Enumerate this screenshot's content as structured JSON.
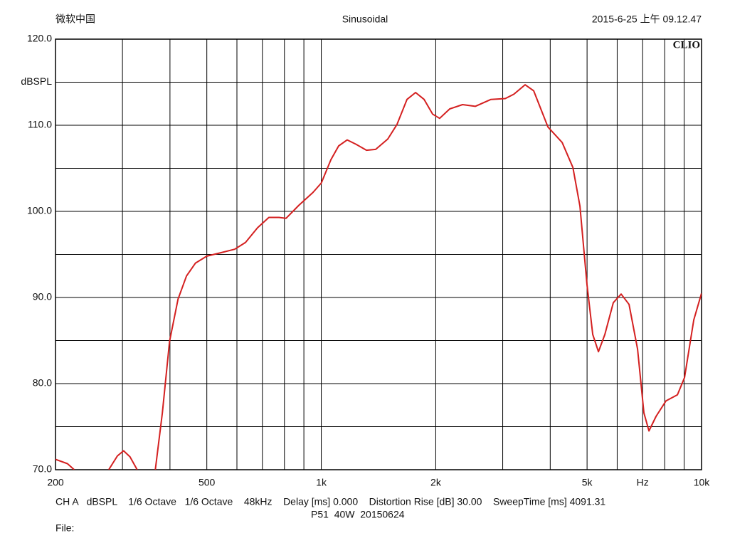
{
  "chart_data": {
    "type": "line",
    "title": "Sinusoidal",
    "header_left": "微软中国",
    "header_right": "2015-6-25 上午 09.12.47",
    "logo": "CLIO",
    "footer": [
      "CH A   dBSPL    1/6 Octave   1/6 Octave    48kHz    Delay [ms] 0.000    Distortion Rise [dB] 30.00    SweepTime [ms] 4091.31",
      "P51  40W  20150624",
      "File:"
    ],
    "log_x": true,
    "grid": true,
    "xlim": [
      200,
      10000
    ],
    "xticks": [
      200,
      500,
      {
        "value": 1000,
        "label": "1k"
      },
      {
        "value": 2000,
        "label": "2k"
      },
      {
        "value": 5000,
        "label": "5k"
      },
      {
        "value": 7000,
        "label": "Hz"
      },
      {
        "value": 10000,
        "label": "10k"
      }
    ],
    "xgrid": [
      300,
      400,
      500,
      600,
      700,
      800,
      900,
      1000,
      2000,
      3000,
      4000,
      5000,
      6000,
      7000,
      8000,
      9000
    ],
    "ylim": [
      70,
      120
    ],
    "yticks": [
      {
        "value": 120,
        "label": "120.0"
      },
      {
        "value": 115,
        "label": "dBSPL"
      },
      {
        "value": 110,
        "label": "110.0"
      },
      {
        "value": 100,
        "label": "100.0"
      },
      {
        "value": 90,
        "label": "90.0"
      },
      {
        "value": 80,
        "label": "80.0"
      },
      {
        "value": 70,
        "label": "70.0"
      }
    ],
    "ygrid": [
      75,
      80,
      85,
      90,
      95,
      100,
      105,
      110,
      115
    ],
    "series": [
      {
        "color": "#d42020",
        "x": [
          200,
          215,
          224,
          250,
          276,
          291,
          302,
          314,
          328,
          345,
          366,
          382,
          399,
          420,
          442,
          467,
          500,
          544,
          592,
          632,
          680,
          728,
          774,
          808,
          873,
          951,
          1000,
          1060,
          1111,
          1170,
          1233,
          1315,
          1390,
          1496,
          1582,
          1680,
          1770,
          1864,
          1962,
          2048,
          2177,
          2352,
          2541,
          2794,
          3046,
          3209,
          3436,
          3619,
          3944,
          4300,
          4588,
          4789,
          4998,
          5175,
          5357,
          5568,
          5862,
          6146,
          6446,
          6788,
          7055,
          7272,
          7592,
          8066,
          8640,
          9020,
          9540,
          10000
        ],
        "values": [
          71.2,
          70.7,
          70.0,
          null,
          70.0,
          71.6,
          72.2,
          71.5,
          70.0,
          null,
          70.0,
          76.6,
          84.9,
          89.8,
          92.5,
          94.0,
          94.8,
          95.2,
          95.6,
          96.4,
          98.1,
          99.3,
          99.3,
          99.2,
          100.7,
          102.2,
          103.3,
          106.0,
          107.6,
          108.3,
          107.8,
          107.1,
          107.2,
          108.4,
          110.1,
          113.0,
          113.8,
          113.0,
          111.3,
          110.8,
          111.9,
          112.4,
          112.2,
          113.0,
          113.1,
          113.6,
          114.7,
          114.0,
          109.8,
          108.0,
          105.1,
          100.6,
          91.5,
          85.7,
          83.7,
          85.7,
          89.4,
          90.4,
          89.2,
          84.0,
          76.6,
          74.5,
          76.2,
          78.0,
          78.7,
          80.7,
          87.4,
          90.5
        ]
      }
    ]
  }
}
